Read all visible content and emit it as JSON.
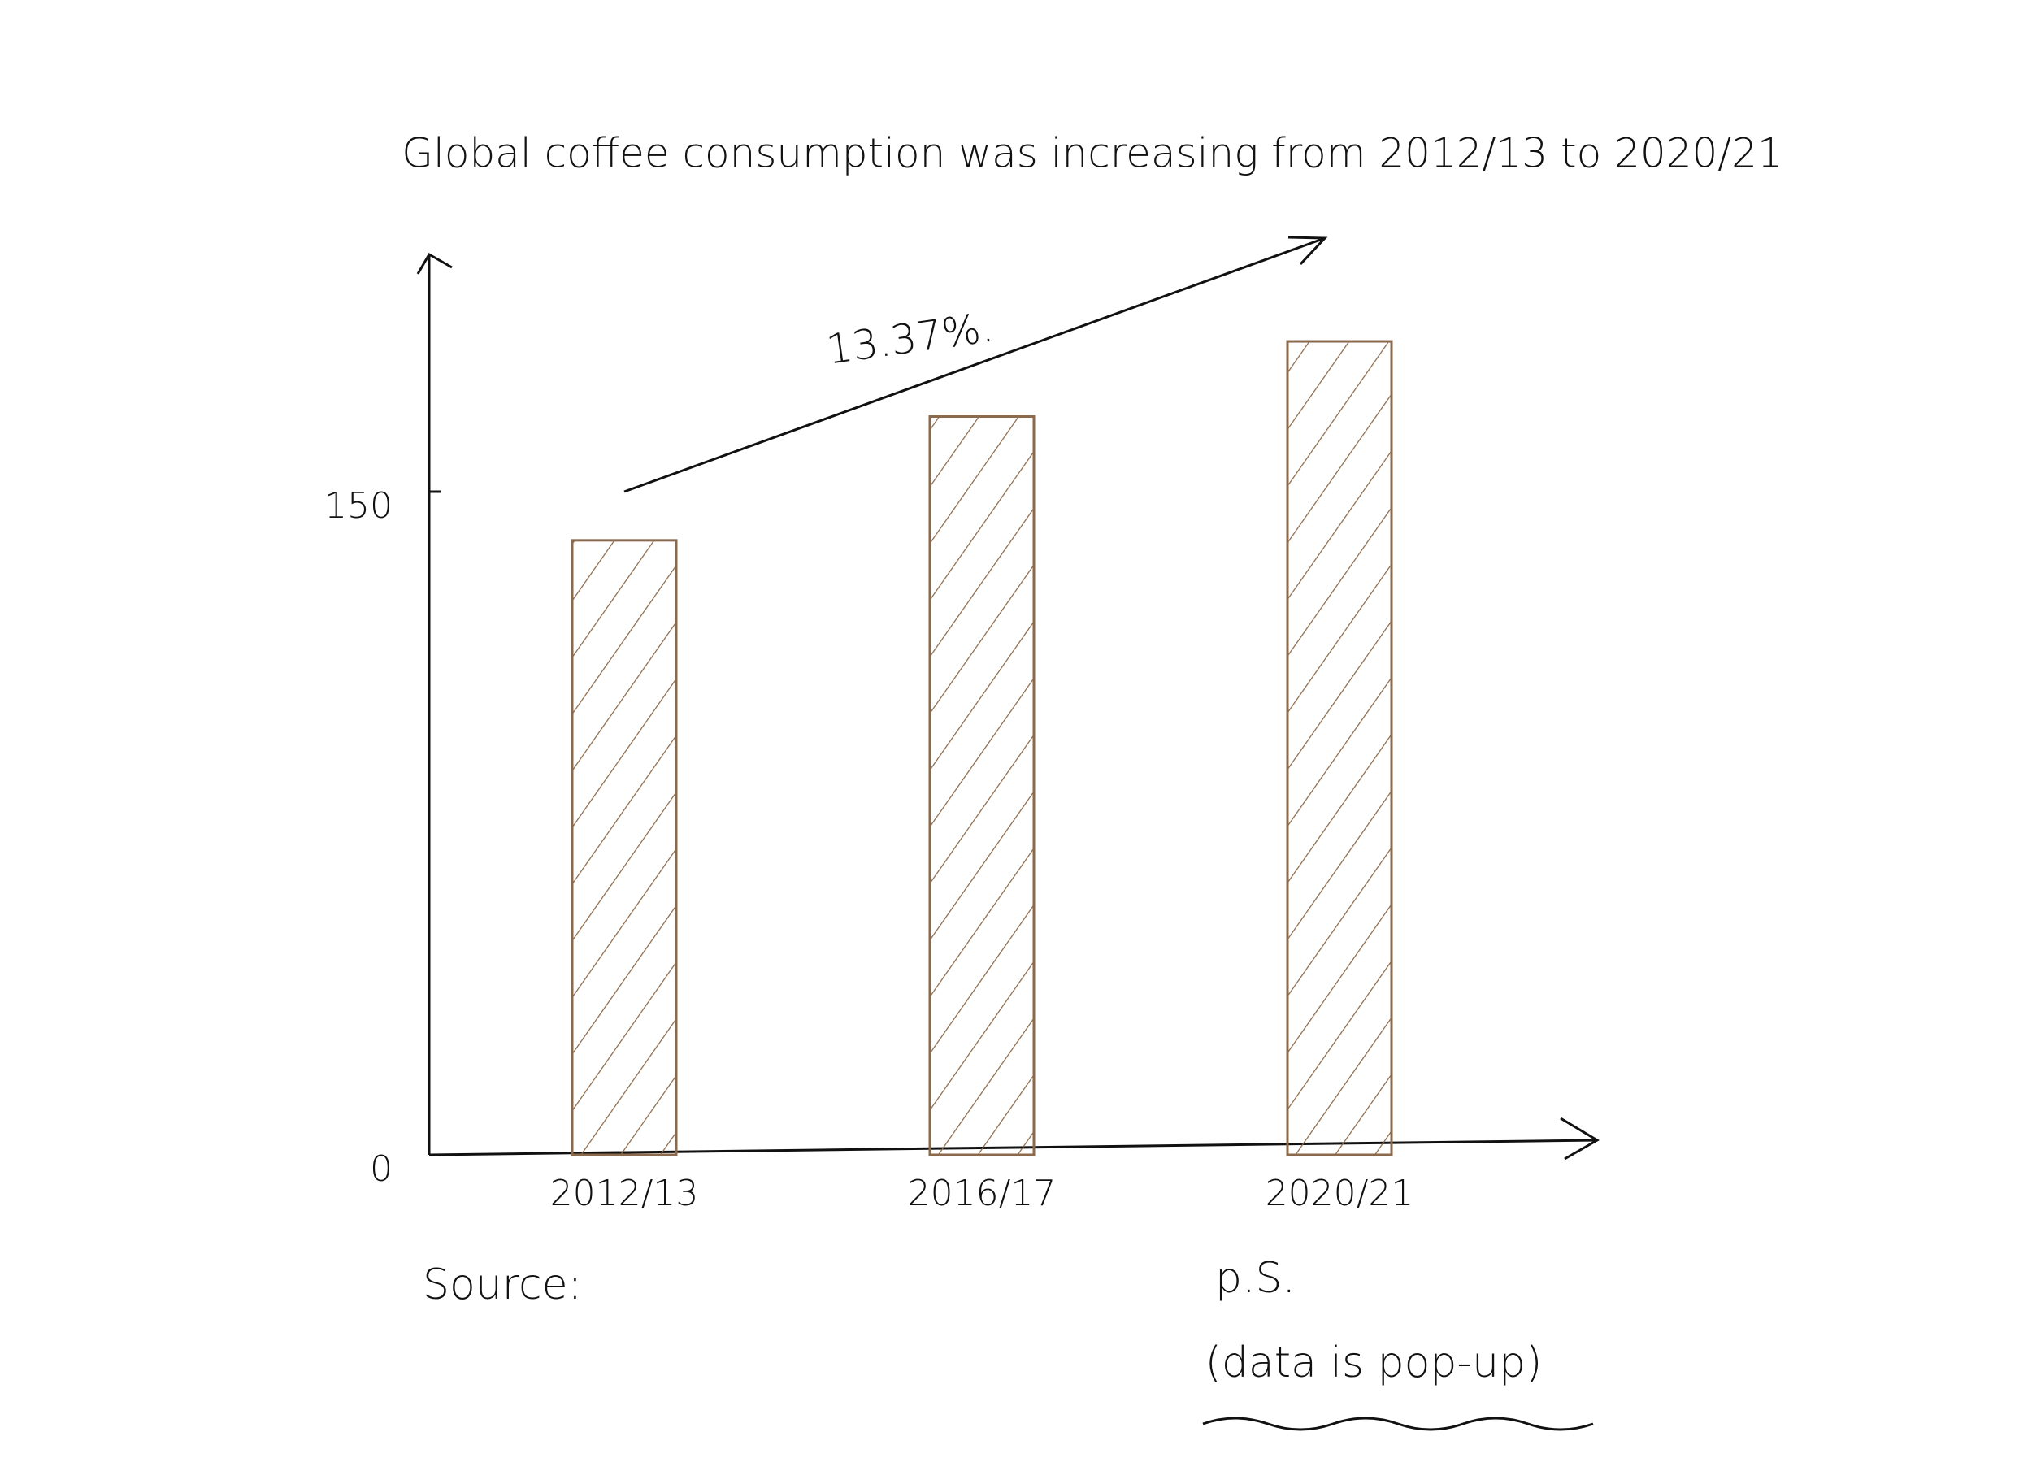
{
  "chart_data": {
    "type": "bar",
    "title": "Global coffee consumption was increasing from 2012/13 to 2020/21",
    "categories": [
      "2012/13",
      "2016/17",
      "2020/21"
    ],
    "values": [
      139,
      167,
      184
    ],
    "color": "#8b6a4b",
    "ylim": [
      0,
      200
    ],
    "yticks": [
      0,
      150
    ],
    "grid": false,
    "annotation": "13.37%.",
    "source": "Source:",
    "notes": [
      "p.S.",
      "(data is pop-up)"
    ]
  }
}
